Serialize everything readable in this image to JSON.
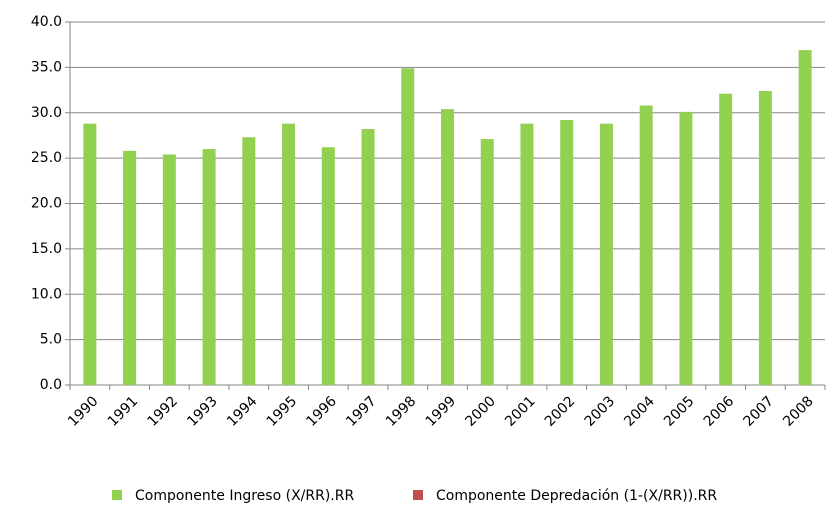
{
  "chart_data": {
    "type": "bar",
    "categories": [
      "1990",
      "1991",
      "1992",
      "1993",
      "1994",
      "1995",
      "1996",
      "1997",
      "1998",
      "1999",
      "2000",
      "2001",
      "2002",
      "2003",
      "2004",
      "2005",
      "2006",
      "2007",
      "2008"
    ],
    "series": [
      {
        "name": "Componente Ingreso (X/RR).RR",
        "color": "#92d050",
        "values": [
          28.8,
          25.8,
          25.4,
          26.0,
          27.3,
          28.8,
          26.2,
          28.2,
          34.9,
          30.4,
          27.1,
          28.8,
          29.2,
          28.8,
          30.8,
          30.1,
          32.1,
          32.4,
          36.9
        ]
      },
      {
        "name": "Componente Depredación (1-(X/RR)).RR",
        "color": "#c0504d",
        "values": [
          null,
          null,
          null,
          null,
          null,
          null,
          null,
          null,
          null,
          null,
          null,
          null,
          null,
          null,
          null,
          null,
          null,
          null,
          null
        ]
      }
    ],
    "ylim": [
      0,
      40
    ],
    "yticks": [
      {
        "value": 0,
        "label": "0.0"
      },
      {
        "value": 5,
        "label": "5.0"
      },
      {
        "value": 10,
        "label": "10.0"
      },
      {
        "value": 15,
        "label": "15.0"
      },
      {
        "value": 20,
        "label": "20.0"
      },
      {
        "value": 25,
        "label": "25.0"
      },
      {
        "value": 30,
        "label": "30.0"
      },
      {
        "value": 35,
        "label": "35.0"
      },
      {
        "value": 40,
        "label": "40.0"
      }
    ],
    "grid": true,
    "legend": "bottom"
  }
}
